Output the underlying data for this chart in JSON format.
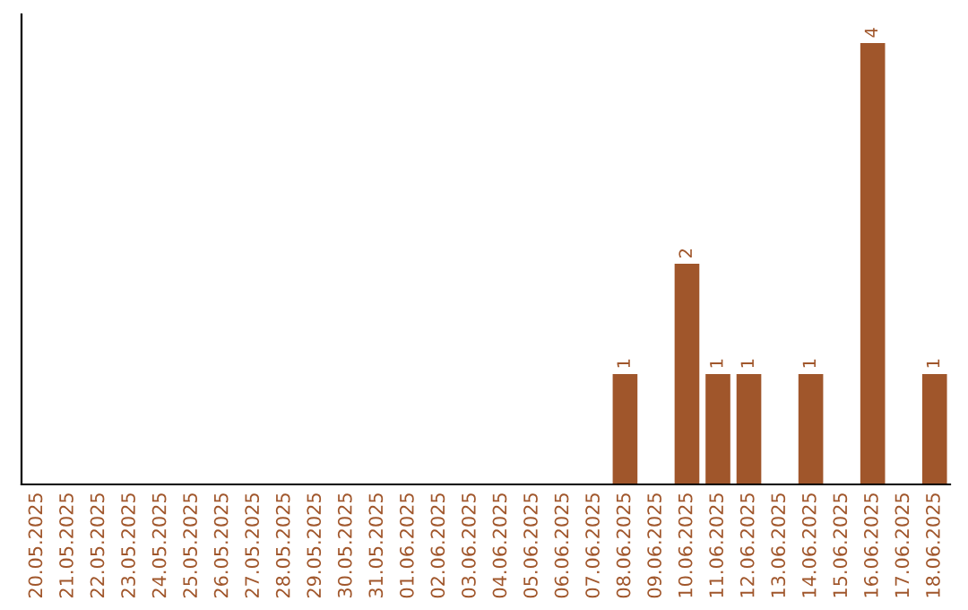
{
  "chart_data": {
    "type": "bar",
    "categories": [
      "20.05.2025",
      "21.05.2025",
      "22.05.2025",
      "23.05.2025",
      "24.05.2025",
      "25.05.2025",
      "26.05.2025",
      "27.05.2025",
      "28.05.2025",
      "29.05.2025",
      "30.05.2025",
      "31.05.2025",
      "01.06.2025",
      "02.06.2025",
      "03.06.2025",
      "04.06.2025",
      "05.06.2025",
      "06.06.2025",
      "07.06.2025",
      "08.06.2025",
      "09.06.2025",
      "10.06.2025",
      "11.06.2025",
      "12.06.2025",
      "13.06.2025",
      "14.06.2025",
      "15.06.2025",
      "16.06.2025",
      "17.06.2025",
      "18.06.2025"
    ],
    "values": [
      null,
      null,
      null,
      null,
      null,
      null,
      null,
      null,
      null,
      null,
      null,
      null,
      null,
      null,
      null,
      null,
      null,
      null,
      null,
      1,
      null,
      2,
      1,
      1,
      null,
      1,
      null,
      4,
      null,
      1
    ],
    "data_labels": true,
    "color": "#a0562b",
    "grid": false,
    "legend": false
  }
}
